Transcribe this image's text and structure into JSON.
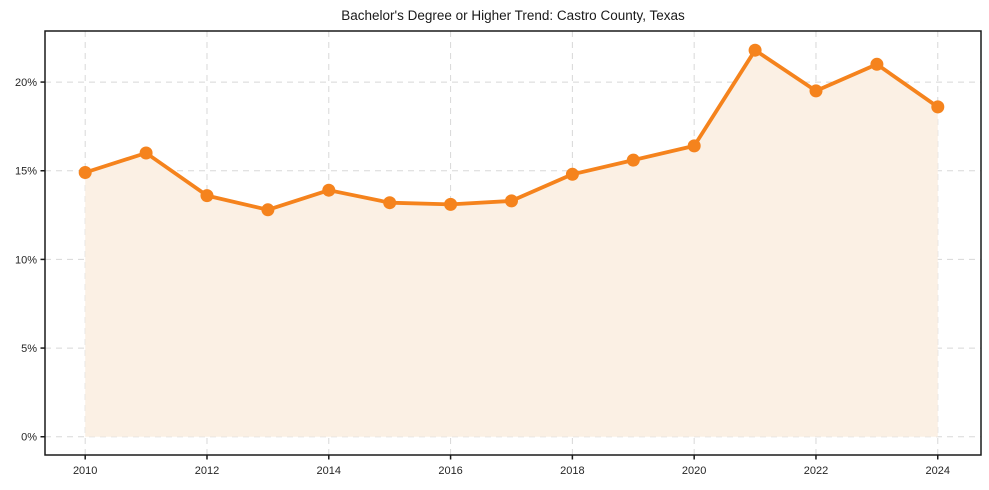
{
  "title": "Bachelor's Degree or Higher Trend: Castro County, Texas",
  "chart_data": {
    "type": "area",
    "title": "Bachelor's Degree or Higher Trend: Castro County, Texas",
    "x": [
      2010,
      2011,
      2012,
      2013,
      2014,
      2015,
      2016,
      2017,
      2018,
      2019,
      2020,
      2021,
      2022,
      2023,
      2024
    ],
    "series": [
      {
        "name": "Bachelor's degree or higher (%)",
        "values": [
          14.9,
          16.0,
          13.6,
          12.8,
          13.9,
          13.2,
          13.1,
          13.3,
          14.8,
          15.6,
          16.4,
          21.8,
          19.5,
          21.0,
          18.6
        ]
      }
    ],
    "xlabel": "",
    "ylabel": "",
    "xticks": [
      2010,
      2012,
      2014,
      2016,
      2018,
      2020,
      2022,
      2024
    ],
    "yticks": [
      {
        "value": 0,
        "label": "0%"
      },
      {
        "value": 5,
        "label": "5%"
      },
      {
        "value": 10,
        "label": "10%"
      },
      {
        "value": 15,
        "label": "15%"
      },
      {
        "value": 20,
        "label": "20%"
      }
    ],
    "xlim": [
      2009.34,
      2024.71
    ],
    "ylim": [
      -1.03,
      22.88
    ],
    "baseline": 0,
    "grid": true,
    "grid_style": "dashed",
    "legend": "none",
    "colors": {
      "line": "#F5831D",
      "marker": "#F5831D",
      "fill": "#FBF0E4",
      "grid": "#D8D8D8",
      "axis": "#1A1A1A",
      "text": "#262626"
    }
  }
}
